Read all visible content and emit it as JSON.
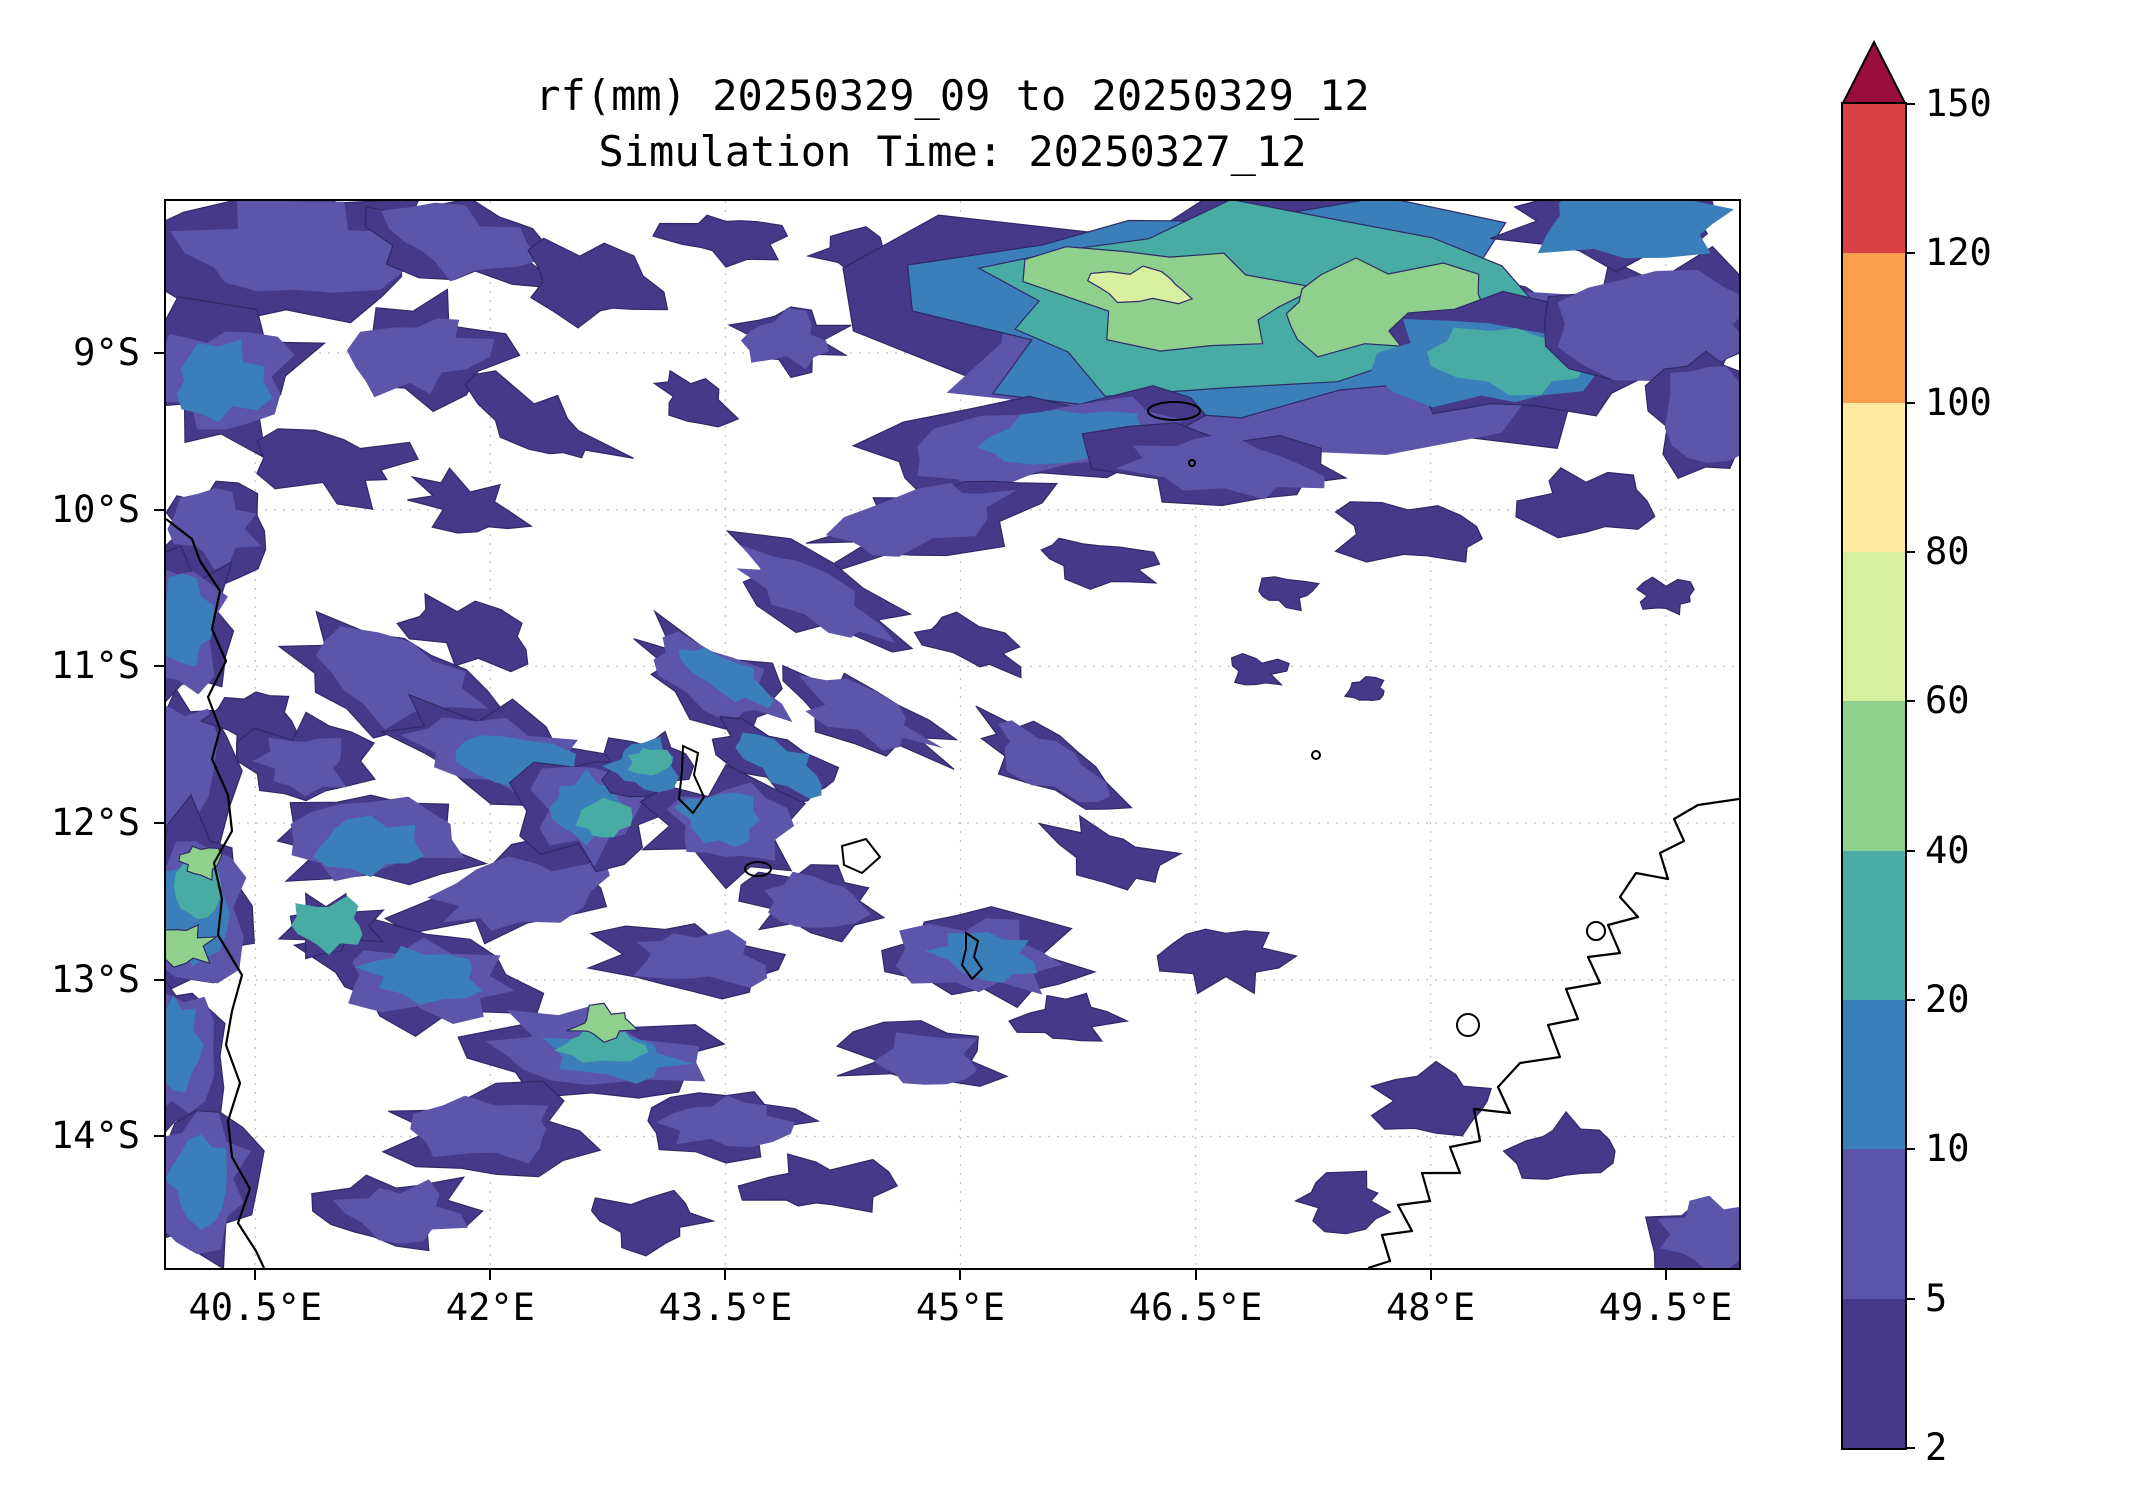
{
  "title": {
    "line1": "rf(mm) 20250329_09 to 20250329_12",
    "line2": "Simulation Time: 20250327_12"
  },
  "x_axis": {
    "ticks": [
      {
        "label": "40.5°E",
        "lon": 40.5
      },
      {
        "label": "42°E",
        "lon": 42.0
      },
      {
        "label": "43.5°E",
        "lon": 43.5
      },
      {
        "label": "45°E",
        "lon": 45.0
      },
      {
        "label": "46.5°E",
        "lon": 46.5
      },
      {
        "label": "48°E",
        "lon": 48.0
      },
      {
        "label": "49.5°E",
        "lon": 49.5
      }
    ]
  },
  "y_axis": {
    "ticks": [
      {
        "label": "9°S",
        "lat": 9
      },
      {
        "label": "10°S",
        "lat": 10
      },
      {
        "label": "11°S",
        "lat": 11
      },
      {
        "label": "12°S",
        "lat": 12
      },
      {
        "label": "13°S",
        "lat": 13
      },
      {
        "label": "14°S",
        "lat": 14
      }
    ]
  },
  "colorbar": {
    "levels": [
      2,
      5,
      10,
      20,
      40,
      60,
      80,
      100,
      120,
      150
    ],
    "colors": [
      "#46398a",
      "#5c55a9",
      "#3a7eba",
      "#48aca5",
      "#8fd08c",
      "#d7ef9f",
      "#fdeaa0",
      "#f99d4e",
      "#da4146"
    ],
    "extend_color": "#9a0e3d",
    "grid_color": "#c8c8c8"
  },
  "chart_data": {
    "type": "heatmap",
    "subtype": "filled_contour_map",
    "title": "rf(mm) 20250329_09 to 20250329_12",
    "subtitle": "Simulation Time: 20250327_12",
    "variable": "rainfall accumulation rf (mm)",
    "x": {
      "label": "longitude",
      "tick_labels": [
        "40.5°E",
        "42°E",
        "43.5°E",
        "45°E",
        "46.5°E",
        "48°E",
        "49.5°E"
      ],
      "range_deg_east": [
        39.9,
        50.0
      ]
    },
    "y": {
      "label": "latitude",
      "tick_labels": [
        "9°S",
        "10°S",
        "11°S",
        "12°S",
        "13°S",
        "14°S"
      ],
      "range_deg_south": [
        8.0,
        14.9
      ]
    },
    "contour_levels_mm": [
      2,
      5,
      10,
      20,
      40,
      60,
      80,
      100,
      120,
      150
    ],
    "colorbar_colors_low_to_high": [
      "#46398a",
      "#5c55a9",
      "#3a7eba",
      "#48aca5",
      "#8fd08c",
      "#d7ef9f",
      "#fdeaa0",
      "#f99d4e",
      "#da4146"
    ],
    "colorbar_extend_max_color": "#9a0e3d",
    "colorbar_tick_labels_top_to_bottom": [
      "150",
      "120",
      "100",
      "80",
      "60",
      "40",
      "20",
      "10",
      "5",
      "2"
    ],
    "grid": true,
    "legend_position": "right-vertical-colorbar",
    "map_features": [
      "coastlines",
      "islands"
    ],
    "summary": "Scattered light rain (2-20 mm) over the Mozambique Channel and along the African coast; heavier band (20-80 mm) near 8.5-9.5S between 44.5E and 48.5E; mostly dry over northwest Madagascar."
  }
}
